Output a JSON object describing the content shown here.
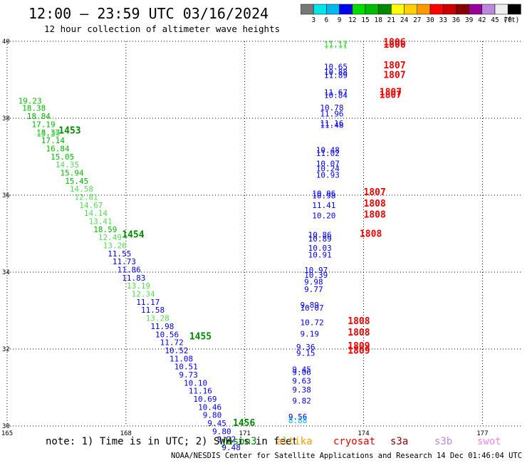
{
  "title": "12:00 – 23:59 UTC 03/16/2024",
  "subtitle": "12 hour collection of altimeter wave heights",
  "note": "note:  1) Time is in UTC; 2) SWH is in feet",
  "credit": "NOAA/NESDIS Center for Satellite Applications and Research    14 Dec 01:46:04 UTC 2024",
  "colorbar": {
    "colors": [
      "#777777",
      "#00e5e5",
      "#00b8ee",
      "#0000ee",
      "#00dd00",
      "#00bb00",
      "#008800",
      "#ffff00",
      "#ffd000",
      "#ff9900",
      "#ff0000",
      "#cc0000",
      "#880000",
      "#990099",
      "#bb88dd",
      "#eeeeee",
      "#000000"
    ],
    "labels": [
      "3",
      "6",
      "9",
      "12",
      "15",
      "18",
      "21",
      "24",
      "27",
      "30",
      "33",
      "36",
      "39",
      "42",
      "45",
      "70"
    ],
    "units": "(ft)"
  },
  "satellites": [
    {
      "name": "jason3",
      "color": "#008800"
    },
    {
      "name": "altika",
      "color": "#ff9900"
    },
    {
      "name": "cryosat",
      "color": "#ee0000"
    },
    {
      "name": "s3a",
      "color": "#880000"
    },
    {
      "name": "s3b",
      "color": "#bb88dd"
    },
    {
      "name": "swot",
      "color": "#ee88dd"
    }
  ],
  "chart_data": {
    "type": "scatter",
    "x_axis": {
      "min": 165,
      "max": 178,
      "ticks": [
        "165",
        "168",
        "171",
        "174",
        "177"
      ]
    },
    "y_axis": {
      "min": 30,
      "max": 40,
      "ticks": [
        "30",
        "32",
        "34",
        "36",
        "38",
        "40"
      ]
    },
    "grid": true,
    "points": [
      {
        "lon": 165.28,
        "lat": 38.38,
        "label": "19.23",
        "color": "#00bb00"
      },
      {
        "lon": 165.38,
        "lat": 38.19,
        "label": "18.38",
        "color": "#00bb00"
      },
      {
        "lon": 165.5,
        "lat": 37.98,
        "label": "18.84",
        "color": "#00bb00"
      },
      {
        "lon": 165.62,
        "lat": 37.77,
        "label": "17.19",
        "color": "#00bb00"
      },
      {
        "lon": 165.74,
        "lat": 37.56,
        "label": "18.37",
        "color": "#00bb00"
      },
      {
        "lon": 165.74,
        "lat": 37.52,
        "label": "15.39",
        "color": "#55dd55"
      },
      {
        "lon": 165.86,
        "lat": 37.35,
        "label": "17.14",
        "color": "#00bb00"
      },
      {
        "lon": 165.98,
        "lat": 37.14,
        "label": "16.84",
        "color": "#00bb00"
      },
      {
        "lon": 166.1,
        "lat": 36.93,
        "label": "15.05",
        "color": "#00bb00"
      },
      {
        "lon": 166.22,
        "lat": 36.72,
        "label": "14.35",
        "color": "#55dd55"
      },
      {
        "lon": 166.34,
        "lat": 36.51,
        "label": "15.94",
        "color": "#00bb00"
      },
      {
        "lon": 166.46,
        "lat": 36.3,
        "label": "15.45",
        "color": "#00bb00"
      },
      {
        "lon": 166.58,
        "lat": 36.09,
        "label": "14.58",
        "color": "#55dd55"
      },
      {
        "lon": 166.7,
        "lat": 35.88,
        "label": "12.81",
        "color": "#55dd55"
      },
      {
        "lon": 166.82,
        "lat": 35.67,
        "label": "14.67",
        "color": "#55dd55"
      },
      {
        "lon": 166.94,
        "lat": 35.46,
        "label": "14.14",
        "color": "#55dd55"
      },
      {
        "lon": 167.06,
        "lat": 35.25,
        "label": "13.41",
        "color": "#55dd55"
      },
      {
        "lon": 167.18,
        "lat": 35.04,
        "label": "18.59",
        "color": "#00bb00"
      },
      {
        "lon": 167.3,
        "lat": 34.83,
        "label": "12.49",
        "color": "#55dd55"
      },
      {
        "lon": 167.42,
        "lat": 34.62,
        "label": "13.26",
        "color": "#55dd55"
      },
      {
        "lon": 167.54,
        "lat": 34.41,
        "label": "11.55",
        "color": "#0000ee"
      },
      {
        "lon": 167.66,
        "lat": 34.2,
        "label": "11.73",
        "color": "#0000ee"
      },
      {
        "lon": 167.78,
        "lat": 33.99,
        "label": "11.86",
        "color": "#0000ee"
      },
      {
        "lon": 167.9,
        "lat": 33.78,
        "label": "11.83",
        "color": "#0000ee"
      },
      {
        "lon": 168.02,
        "lat": 33.57,
        "label": "13.19",
        "color": "#55dd55"
      },
      {
        "lon": 168.14,
        "lat": 33.36,
        "label": "12.34",
        "color": "#55dd55"
      },
      {
        "lon": 168.26,
        "lat": 33.15,
        "label": "11.17",
        "color": "#0000ee"
      },
      {
        "lon": 168.38,
        "lat": 32.94,
        "label": "11.58",
        "color": "#0000ee"
      },
      {
        "lon": 168.5,
        "lat": 32.73,
        "label": "13.28",
        "color": "#55dd55"
      },
      {
        "lon": 168.62,
        "lat": 32.52,
        "label": "11.98",
        "color": "#0000ee"
      },
      {
        "lon": 168.74,
        "lat": 32.31,
        "label": "10.56",
        "color": "#0000ee"
      },
      {
        "lon": 168.86,
        "lat": 32.1,
        "label": "11.72",
        "color": "#0000ee"
      },
      {
        "lon": 168.98,
        "lat": 31.89,
        "label": "10.52",
        "color": "#0000ee"
      },
      {
        "lon": 169.1,
        "lat": 31.68,
        "label": "11.08",
        "color": "#0000ee"
      },
      {
        "lon": 169.22,
        "lat": 31.47,
        "label": "10.51",
        "color": "#0000ee"
      },
      {
        "lon": 169.34,
        "lat": 31.26,
        "label": "9.73",
        "color": "#0000ee"
      },
      {
        "lon": 169.46,
        "lat": 31.05,
        "label": "10.10",
        "color": "#0000ee"
      },
      {
        "lon": 169.58,
        "lat": 30.84,
        "label": "11.16",
        "color": "#0000ee"
      },
      {
        "lon": 169.7,
        "lat": 30.63,
        "label": "10.69",
        "color": "#0000ee"
      },
      {
        "lon": 169.82,
        "lat": 30.42,
        "label": "10.46",
        "color": "#0000ee"
      },
      {
        "lon": 169.94,
        "lat": 30.21,
        "label": "9.80",
        "color": "#0000ee"
      },
      {
        "lon": 170.06,
        "lat": 30.0,
        "label": "9.45",
        "color": "#0000ee"
      },
      {
        "lon": 170.18,
        "lat": 29.79,
        "label": "9.80",
        "color": "#0000ee"
      },
      {
        "lon": 170.3,
        "lat": 29.58,
        "label": "9.22",
        "color": "#0000ee"
      },
      {
        "lon": 170.42,
        "lat": 29.37,
        "label": "9.48",
        "color": "#0000ee"
      },
      {
        "lon": 173.0,
        "lat": 39.86,
        "label": "11.17",
        "color": "#00bb00"
      },
      {
        "lon": 173.0,
        "lat": 39.82,
        "label": "11.11",
        "color": "#55dd55"
      },
      {
        "lon": 173.0,
        "lat": 39.27,
        "label": "10.65",
        "color": "#0000ee"
      },
      {
        "lon": 173.0,
        "lat": 39.13,
        "label": "10.88",
        "color": "#0000ee"
      },
      {
        "lon": 173.0,
        "lat": 39.05,
        "label": "11.89",
        "color": "#0000ee"
      },
      {
        "lon": 173.0,
        "lat": 38.6,
        "label": "11.67",
        "color": "#0000ee"
      },
      {
        "lon": 173.0,
        "lat": 38.53,
        "label": "10.84",
        "color": "#0000ee"
      },
      {
        "lon": 172.9,
        "lat": 38.2,
        "label": "10.78",
        "color": "#0000ee"
      },
      {
        "lon": 172.9,
        "lat": 38.05,
        "label": "11.96",
        "color": "#0000ee"
      },
      {
        "lon": 172.9,
        "lat": 37.8,
        "label": "11.16",
        "color": "#0000ee"
      },
      {
        "lon": 172.9,
        "lat": 37.75,
        "label": "11.48",
        "color": "#0000ee"
      },
      {
        "lon": 172.8,
        "lat": 37.1,
        "label": "10.48",
        "color": "#0000ee"
      },
      {
        "lon": 172.8,
        "lat": 37.02,
        "label": "11.02",
        "color": "#0000ee"
      },
      {
        "lon": 172.8,
        "lat": 36.75,
        "label": "10.07",
        "color": "#0000ee"
      },
      {
        "lon": 172.8,
        "lat": 36.62,
        "label": "10.24",
        "color": "#0000ee"
      },
      {
        "lon": 172.8,
        "lat": 36.45,
        "label": "10.93",
        "color": "#0000ee"
      },
      {
        "lon": 172.7,
        "lat": 35.97,
        "label": "10.96",
        "color": "#0000ee"
      },
      {
        "lon": 172.7,
        "lat": 35.92,
        "label": "10.98",
        "color": "#0000ee"
      },
      {
        "lon": 172.7,
        "lat": 35.67,
        "label": "11.41",
        "color": "#0000ee"
      },
      {
        "lon": 172.7,
        "lat": 35.4,
        "label": "10.20",
        "color": "#0000ee"
      },
      {
        "lon": 172.6,
        "lat": 34.9,
        "label": "10.86",
        "color": "#0000ee"
      },
      {
        "lon": 172.6,
        "lat": 34.8,
        "label": "10.89",
        "color": "#0000ee"
      },
      {
        "lon": 172.6,
        "lat": 34.56,
        "label": "10.03",
        "color": "#0000ee"
      },
      {
        "lon": 172.6,
        "lat": 34.38,
        "label": "10.91",
        "color": "#0000ee"
      },
      {
        "lon": 172.5,
        "lat": 33.98,
        "label": "10.97",
        "color": "#0000ee"
      },
      {
        "lon": 172.5,
        "lat": 33.85,
        "label": "10.39",
        "color": "#0000ee"
      },
      {
        "lon": 172.5,
        "lat": 33.68,
        "label": "9.98",
        "color": "#0000ee"
      },
      {
        "lon": 172.5,
        "lat": 33.48,
        "label": "9.77",
        "color": "#0000ee"
      },
      {
        "lon": 172.4,
        "lat": 33.07,
        "label": "9.89",
        "color": "#0000ee"
      },
      {
        "lon": 172.4,
        "lat": 33.0,
        "label": "10.07",
        "color": "#0000ee"
      },
      {
        "lon": 172.4,
        "lat": 32.62,
        "label": "10.72",
        "color": "#0000ee"
      },
      {
        "lon": 172.4,
        "lat": 32.32,
        "label": "9.19",
        "color": "#0000ee"
      },
      {
        "lon": 172.3,
        "lat": 31.98,
        "label": "9.36",
        "color": "#0000ee"
      },
      {
        "lon": 172.3,
        "lat": 31.82,
        "label": "9.15",
        "color": "#0000ee"
      },
      {
        "lon": 172.2,
        "lat": 31.4,
        "label": "9.45",
        "color": "#0000ee"
      },
      {
        "lon": 172.2,
        "lat": 31.32,
        "label": "9.06",
        "color": "#0000ee"
      },
      {
        "lon": 172.2,
        "lat": 31.1,
        "label": "9.63",
        "color": "#0000ee"
      },
      {
        "lon": 172.2,
        "lat": 30.87,
        "label": "9.38",
        "color": "#0000ee"
      },
      {
        "lon": 172.2,
        "lat": 30.58,
        "label": "9.82",
        "color": "#0000ee"
      },
      {
        "lon": 172.1,
        "lat": 30.17,
        "label": "9.56",
        "color": "#0000ee"
      },
      {
        "lon": 172.1,
        "lat": 30.07,
        "label": "8.88",
        "color": "#00b8ee"
      }
    ],
    "time_labels": [
      {
        "lon": 166.3,
        "lat": 37.6,
        "label": "1453",
        "color": "#008800"
      },
      {
        "lon": 167.9,
        "lat": 34.9,
        "label": "1454",
        "color": "#008800"
      },
      {
        "lon": 169.6,
        "lat": 32.25,
        "label": "1455",
        "color": "#008800"
      },
      {
        "lon": 170.7,
        "lat": 30.0,
        "label": "1456",
        "color": "#008800"
      },
      {
        "lon": 174.5,
        "lat": 39.9,
        "label": "1806",
        "color": "#ee0000"
      },
      {
        "lon": 174.5,
        "lat": 39.83,
        "label": "1806",
        "color": "#ee0000"
      },
      {
        "lon": 174.5,
        "lat": 39.3,
        "label": "1807",
        "color": "#ee0000"
      },
      {
        "lon": 174.5,
        "lat": 39.05,
        "label": "1807",
        "color": "#ee0000"
      },
      {
        "lon": 174.4,
        "lat": 38.6,
        "label": "1807",
        "color": "#ee0000"
      },
      {
        "lon": 174.4,
        "lat": 38.53,
        "label": "1807",
        "color": "#ee0000"
      },
      {
        "lon": 174.0,
        "lat": 36.0,
        "label": "1807",
        "color": "#ee0000"
      },
      {
        "lon": 174.0,
        "lat": 35.7,
        "label": "1808",
        "color": "#ee0000"
      },
      {
        "lon": 174.0,
        "lat": 35.42,
        "label": "1808",
        "color": "#ee0000"
      },
      {
        "lon": 173.9,
        "lat": 34.92,
        "label": "1808",
        "color": "#ee0000"
      },
      {
        "lon": 173.6,
        "lat": 32.65,
        "label": "1808",
        "color": "#ee0000"
      },
      {
        "lon": 173.6,
        "lat": 32.35,
        "label": "1808",
        "color": "#ee0000"
      },
      {
        "lon": 173.6,
        "lat": 32.0,
        "label": "1809",
        "color": "#ee0000"
      },
      {
        "lon": 173.6,
        "lat": 31.88,
        "label": "1809",
        "color": "#ee0000"
      }
    ]
  }
}
